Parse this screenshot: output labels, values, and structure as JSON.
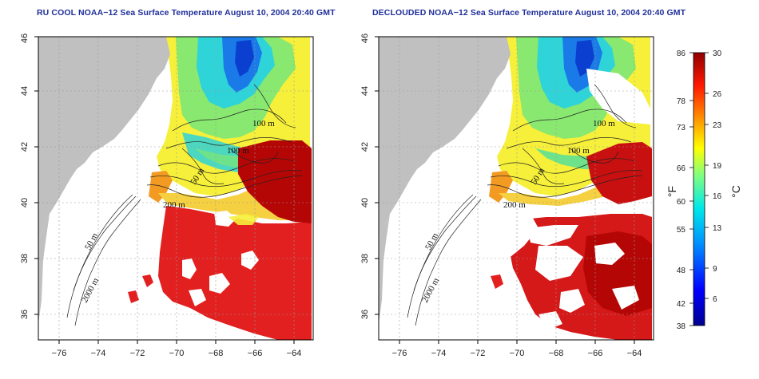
{
  "panels": [
    {
      "id": "left",
      "title": "RU COOL NOAA−12 Sea Surface Temperature August 10, 2004 20:40 GMT",
      "cloud_masked": false,
      "contour_labels": [
        "100 m",
        "100 m",
        "50 m",
        "200 m",
        "50 m",
        "2000 m"
      ]
    },
    {
      "id": "right",
      "title": "DECLOUDED NOAA−12 Sea Surface Temperature August 10, 2004 20:40 GMT",
      "cloud_masked": true,
      "contour_labels": [
        "100 m",
        "100 m",
        "50 m",
        "200 m",
        "50 m",
        "2000 m"
      ]
    }
  ],
  "axes": {
    "lon_ticks": [
      "−76",
      "−74",
      "−72",
      "−70",
      "−68",
      "−66",
      "−64"
    ],
    "lat_ticks": [
      "36",
      "38",
      "40",
      "42",
      "44",
      "46"
    ],
    "lon_range": [
      -77.2,
      -62.9
    ],
    "lat_range": [
      35.1,
      46.0
    ]
  },
  "colorbar": {
    "fahrenheit_labels": [
      "86",
      "78",
      "73",
      "66",
      "60",
      "55",
      "48",
      "42",
      "38"
    ],
    "celsius_labels": [
      "30",
      "26",
      "23",
      "19",
      "16",
      "13",
      "9",
      "6"
    ],
    "unit_f": "°F",
    "unit_c": "°C",
    "range_c": [
      3.3,
      30
    ]
  },
  "colors": {
    "land": "#c0c0c0",
    "title": "#1f2f9a",
    "warm": "#c81010",
    "gulf_stream": "#b80606"
  }
}
